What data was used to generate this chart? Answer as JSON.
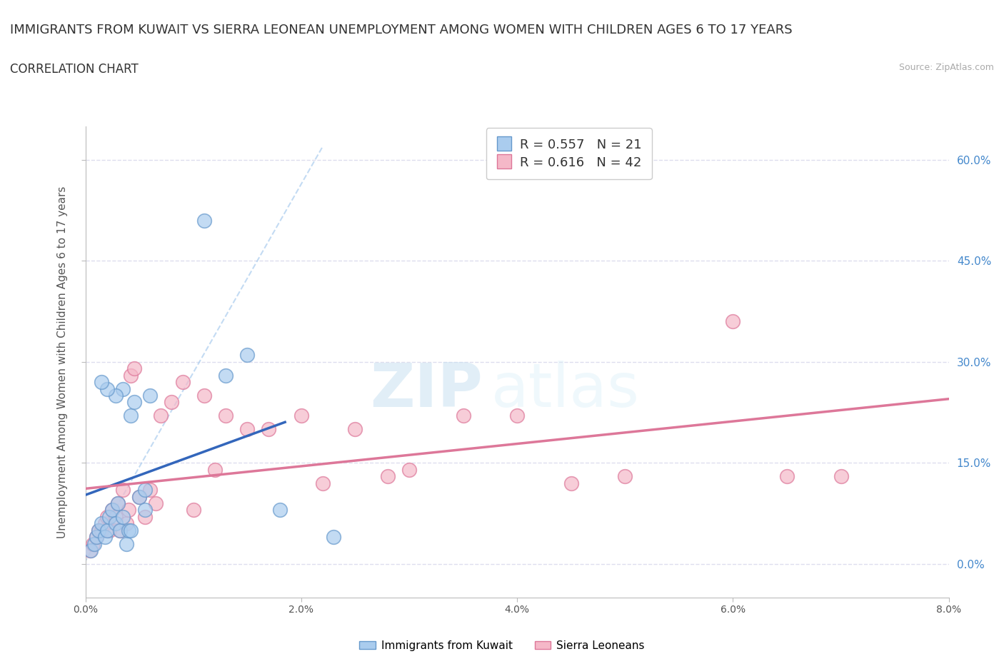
{
  "title": "IMMIGRANTS FROM KUWAIT VS SIERRA LEONEAN UNEMPLOYMENT AMONG WOMEN WITH CHILDREN AGES 6 TO 17 YEARS",
  "subtitle": "CORRELATION CHART",
  "source": "Source: ZipAtlas.com",
  "ylabel": "Unemployment Among Women with Children Ages 6 to 17 years",
  "xlim": [
    0.0,
    8.0
  ],
  "ylim": [
    -5.0,
    65.0
  ],
  "xtick_labels": [
    "0.0%",
    "2.0%",
    "4.0%",
    "6.0%",
    "8.0%"
  ],
  "xtick_vals": [
    0.0,
    2.0,
    4.0,
    6.0,
    8.0
  ],
  "ytick_labels": [
    "0.0%",
    "15.0%",
    "30.0%",
    "45.0%",
    "60.0%"
  ],
  "ytick_vals": [
    0.0,
    15.0,
    30.0,
    45.0,
    60.0
  ],
  "watermark_zip": "ZIP",
  "watermark_atlas": "atlas",
  "legend_label1": "Immigrants from Kuwait",
  "legend_label2": "Sierra Leoneans",
  "kuwait_color": "#aaccee",
  "kuwait_edge": "#6699cc",
  "sl_color": "#f5b8c8",
  "sl_edge": "#dd7799",
  "kuwait_line_color": "#3366bb",
  "sl_line_color": "#dd7799",
  "ref_line_color": "#aaccee",
  "background_color": "#ffffff",
  "grid_color": "#ddddee",
  "title_fontsize": 13,
  "subtitle_fontsize": 12,
  "axis_label_fontsize": 11,
  "tick_fontsize": 10,
  "legend_fontsize": 13,
  "kuwait_x": [
    0.05,
    0.08,
    0.1,
    0.12,
    0.15,
    0.18,
    0.2,
    0.22,
    0.25,
    0.28,
    0.3,
    0.32,
    0.35,
    0.38,
    0.4,
    0.42,
    0.45,
    0.5,
    0.55,
    0.6,
    1.1,
    1.3,
    1.5,
    1.8,
    2.3,
    0.35,
    0.28,
    0.2,
    0.15,
    0.55,
    0.42
  ],
  "kuwait_y": [
    2.0,
    3.0,
    4.0,
    5.0,
    6.0,
    4.0,
    5.0,
    7.0,
    8.0,
    6.0,
    9.0,
    5.0,
    7.0,
    3.0,
    5.0,
    22.0,
    24.0,
    10.0,
    11.0,
    25.0,
    51.0,
    28.0,
    31.0,
    8.0,
    4.0,
    26.0,
    25.0,
    26.0,
    27.0,
    8.0,
    5.0
  ],
  "sl_x": [
    0.04,
    0.07,
    0.1,
    0.12,
    0.15,
    0.18,
    0.2,
    0.22,
    0.25,
    0.28,
    0.3,
    0.32,
    0.35,
    0.38,
    0.4,
    0.42,
    0.45,
    0.5,
    0.55,
    0.6,
    0.65,
    0.7,
    0.8,
    0.9,
    1.0,
    1.1,
    1.2,
    1.3,
    1.5,
    1.7,
    2.0,
    2.2,
    2.5,
    2.8,
    3.0,
    3.5,
    4.0,
    4.5,
    5.0,
    6.0,
    6.5,
    7.0
  ],
  "sl_y": [
    2.0,
    3.0,
    4.0,
    5.0,
    5.0,
    6.0,
    7.0,
    5.0,
    8.0,
    7.0,
    9.0,
    5.0,
    11.0,
    6.0,
    8.0,
    28.0,
    29.0,
    10.0,
    7.0,
    11.0,
    9.0,
    22.0,
    24.0,
    27.0,
    8.0,
    25.0,
    14.0,
    22.0,
    20.0,
    20.0,
    22.0,
    12.0,
    20.0,
    13.0,
    14.0,
    22.0,
    22.0,
    12.0,
    13.0,
    36.0,
    13.0,
    13.0
  ]
}
